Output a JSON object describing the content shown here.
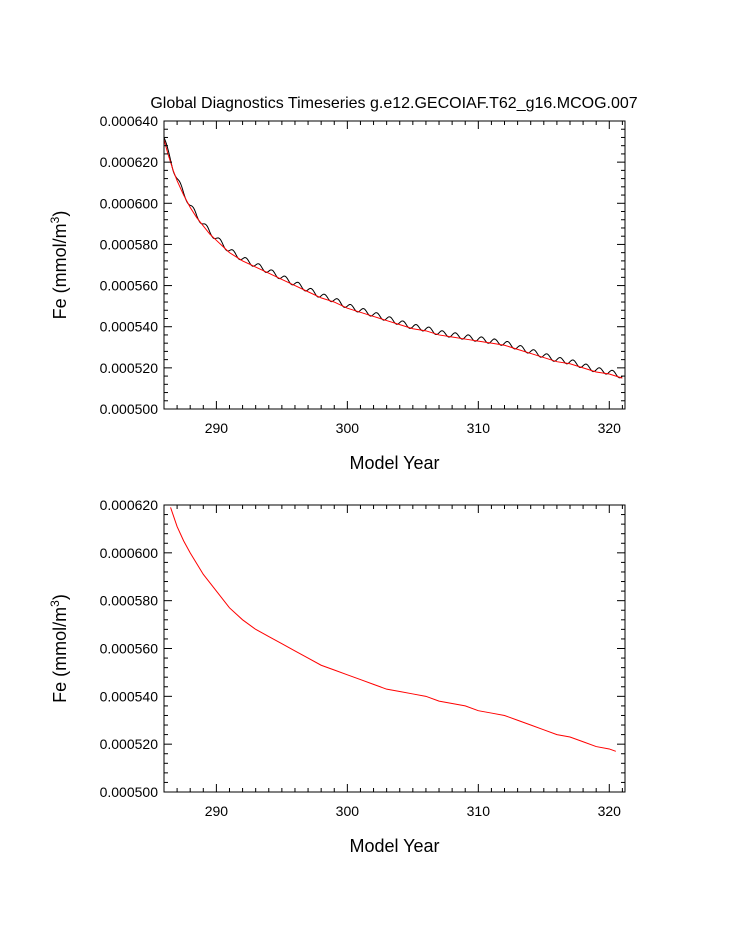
{
  "figure_title": "Global Diagnostics Timeseries g.e12.GECOIAF.T62_g16.MCOG.007",
  "chart_data": [
    {
      "type": "line",
      "title": "Global Diagnostics Timeseries g.e12.GECOIAF.T62_g16.MCOG.007",
      "xlabel": "Model Year",
      "ylabel_main": "Fe (mmol/m",
      "ylabel_sup": "3",
      "ylabel_tail": ")",
      "xlim": [
        286,
        321.2
      ],
      "ylim": [
        0.0005,
        0.00064
      ],
      "xticks": [
        290,
        300,
        310,
        320
      ],
      "xtick_labels": [
        "290",
        "300",
        "310",
        "320"
      ],
      "yticks": [
        0.0005,
        0.00052,
        0.00054,
        0.00056,
        0.00058,
        0.0006,
        0.00062,
        0.00064
      ],
      "ytick_labels": [
        "0.000500",
        "0.000520",
        "0.000540",
        "0.000560",
        "0.000580",
        "0.000600",
        "0.000620",
        "0.000640"
      ],
      "grid": false,
      "series": [
        {
          "color": "#000000",
          "seasonal_amplitude": 1.3e-06,
          "x": [
            286,
            286.3,
            286.7,
            287,
            287.5,
            288,
            288.5,
            289,
            289.5,
            290,
            290.5,
            291,
            292,
            293,
            294,
            295,
            296,
            297,
            298,
            299,
            300,
            301,
            302,
            303,
            304,
            305,
            306,
            307,
            308,
            309,
            310,
            311,
            312,
            313,
            314,
            315,
            316,
            317,
            318,
            319,
            320,
            321
          ],
          "y": [
            0.000632,
            0.000625,
            0.000617,
            0.000612,
            0.000605,
            0.000599,
            0.000594,
            0.00059,
            0.000586,
            0.000583,
            0.00058,
            0.000577,
            0.000573,
            0.00057,
            0.000567,
            0.000564,
            0.000561,
            0.000558,
            0.000555,
            0.000553,
            0.00055,
            0.000548,
            0.000546,
            0.000544,
            0.000542,
            0.00054,
            0.000539,
            0.000537,
            0.000536,
            0.000535,
            0.000534,
            0.000533,
            0.000532,
            0.00053,
            0.000528,
            0.000526,
            0.000524,
            0.000523,
            0.000521,
            0.000519,
            0.000518,
            0.000516
          ]
        },
        {
          "color": "#ff0000",
          "seasonal_amplitude": 0,
          "x": [
            286,
            286.3,
            286.7,
            287,
            287.5,
            288,
            288.5,
            289,
            289.5,
            290,
            290.5,
            291,
            292,
            293,
            294,
            295,
            296,
            297,
            298,
            299,
            300,
            301,
            302,
            303,
            304,
            305,
            306,
            307,
            308,
            309,
            310,
            311,
            312,
            313,
            314,
            315,
            316,
            317,
            318,
            319,
            320,
            321
          ],
          "y": [
            0.000631,
            0.000624,
            0.000616,
            0.000611,
            0.000604,
            0.000598,
            0.000593,
            0.000589,
            0.000585,
            0.000582,
            0.000579,
            0.000576,
            0.000572,
            0.000569,
            0.000566,
            0.000563,
            0.00056,
            0.000557,
            0.000554,
            0.000552,
            0.000549,
            0.000547,
            0.000545,
            0.000543,
            0.000541,
            0.000539,
            0.000538,
            0.000536,
            0.000535,
            0.000534,
            0.000533,
            0.000532,
            0.000531,
            0.000529,
            0.000527,
            0.000525,
            0.000523,
            0.000522,
            0.00052,
            0.000518,
            0.000517,
            0.000515
          ]
        }
      ]
    },
    {
      "type": "line",
      "title": "",
      "xlabel": "Model Year",
      "ylabel_main": "Fe (mmol/m",
      "ylabel_sup": "3",
      "ylabel_tail": ")",
      "xlim": [
        286,
        321.2
      ],
      "ylim": [
        0.0005,
        0.00062
      ],
      "xticks": [
        290,
        300,
        310,
        320
      ],
      "xtick_labels": [
        "290",
        "300",
        "310",
        "320"
      ],
      "yticks": [
        0.0005,
        0.00052,
        0.00054,
        0.00056,
        0.00058,
        0.0006,
        0.00062
      ],
      "ytick_labels": [
        "0.000500",
        "0.000520",
        "0.000540",
        "0.000560",
        "0.000580",
        "0.000600",
        "0.000620"
      ],
      "grid": false,
      "series": [
        {
          "color": "#ff0000",
          "seasonal_amplitude": 0,
          "x": [
            286.5,
            287,
            287.5,
            288,
            289,
            290,
            291,
            292,
            293,
            294,
            295,
            296,
            297,
            298,
            299,
            300,
            301,
            302,
            303,
            304,
            305,
            306,
            307,
            308,
            309,
            310,
            311,
            312,
            313,
            314,
            315,
            316,
            317,
            318,
            319,
            320,
            320.5
          ],
          "y": [
            0.000619,
            0.000611,
            0.000605,
            0.0006,
            0.000591,
            0.000584,
            0.000577,
            0.000572,
            0.000568,
            0.000565,
            0.000562,
            0.000559,
            0.000556,
            0.000553,
            0.000551,
            0.000549,
            0.000547,
            0.000545,
            0.000543,
            0.000542,
            0.000541,
            0.00054,
            0.000538,
            0.000537,
            0.000536,
            0.000534,
            0.000533,
            0.000532,
            0.00053,
            0.000528,
            0.000526,
            0.000524,
            0.000523,
            0.000521,
            0.000519,
            0.000518,
            0.000517
          ]
        }
      ]
    }
  ]
}
